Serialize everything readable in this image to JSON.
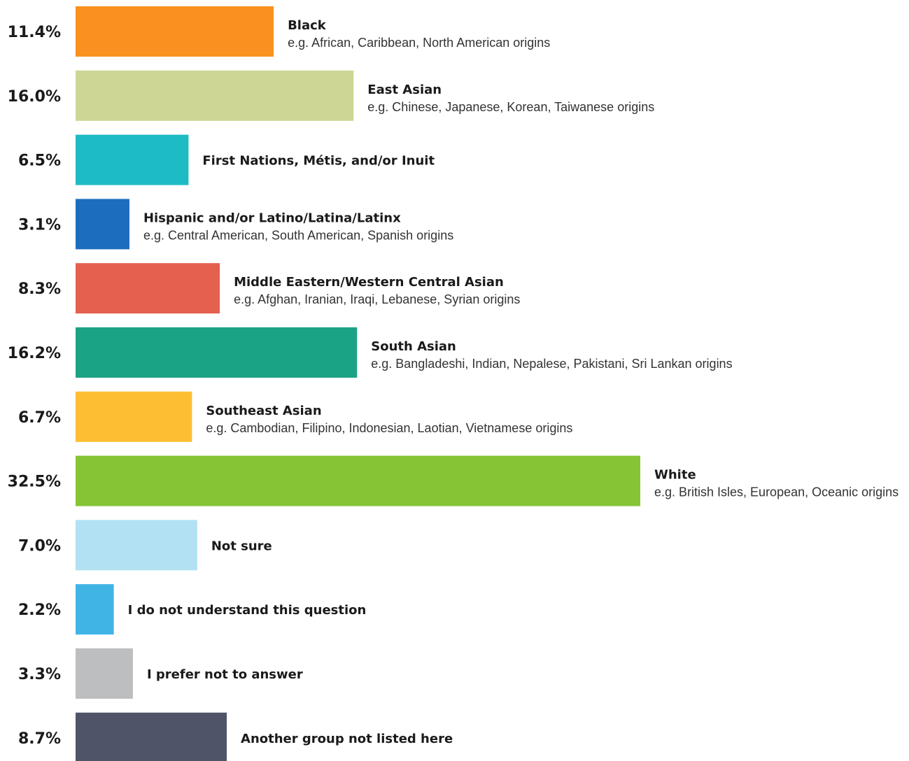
{
  "chart_data": {
    "type": "bar",
    "orientation": "horizontal",
    "unit": "%",
    "xlim": [
      0,
      32.5
    ],
    "grid": false,
    "categories": [
      {
        "label": "Black",
        "sublabel": "e.g. African, Caribbean, North American origins",
        "value": 11.4,
        "display": "11.4%",
        "color": "#FA901F"
      },
      {
        "label": "East Asian",
        "sublabel": "e.g. Chinese, Japanese, Korean, Taiwanese origins",
        "value": 16.0,
        "display": "16.0%",
        "color": "#CED696"
      },
      {
        "label": "First Nations, Métis, and/or Inuit",
        "sublabel": "",
        "value": 6.5,
        "display": "6.5%",
        "color": "#1DBBC4"
      },
      {
        "label": "Hispanic and/or Latino/Latina/Latinx",
        "sublabel": "e.g. Central American, South American, Spanish origins",
        "value": 3.1,
        "display": "3.1%",
        "color": "#1D6DBE"
      },
      {
        "label": "Middle Eastern/Western Central Asian",
        "sublabel": "e.g. Afghan, Iranian, Iraqi, Lebanese, Syrian origins",
        "value": 8.3,
        "display": "8.3%",
        "color": "#E4604F"
      },
      {
        "label": "South Asian",
        "sublabel": "e.g. Bangladeshi, Indian, Nepalese, Pakistani, Sri Lankan origins",
        "value": 16.2,
        "display": "16.2%",
        "color": "#1BA385"
      },
      {
        "label": "Southeast Asian",
        "sublabel": "e.g. Cambodian, Filipino, Indonesian, Laotian, Vietnamese origins",
        "value": 6.7,
        "display": "6.7%",
        "color": "#FDBE33"
      },
      {
        "label": "White",
        "sublabel": "e.g. British Isles, European, Oceanic origins",
        "value": 32.5,
        "display": "32.5%",
        "color": "#86C436"
      },
      {
        "label": "Not sure",
        "sublabel": "",
        "value": 7.0,
        "display": "7.0%",
        "color": "#B1E1F3"
      },
      {
        "label": "I do not understand this question",
        "sublabel": "",
        "value": 2.2,
        "display": "2.2%",
        "color": "#41B4E6"
      },
      {
        "label": "I prefer not to answer",
        "sublabel": "",
        "value": 3.3,
        "display": "3.3%",
        "color": "#BCBEC0"
      },
      {
        "label": "Another group not listed here",
        "sublabel": "",
        "value": 8.7,
        "display": "8.7%",
        "color": "#4F5468"
      }
    ]
  }
}
